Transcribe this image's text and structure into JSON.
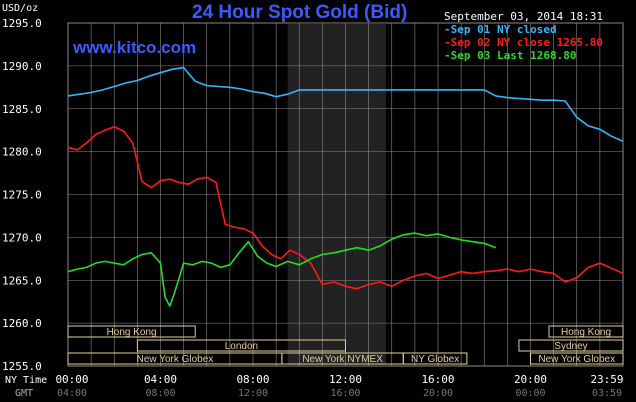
{
  "header": {
    "title": "24 Hour Spot Gold (Bid)",
    "website": "www.kitco.com",
    "unit_label": "USD/oz",
    "timestamp": "September 03, 2014 18:31"
  },
  "colors": {
    "background": "#000000",
    "grid": "#8a8a8a",
    "session_shade": "#222222",
    "sep01": "#33b5ff",
    "sep02": "#ff1a1a",
    "sep03": "#22dd22",
    "market_box": "#e3cf99",
    "market_text": "#000000"
  },
  "chart_data": {
    "type": "line",
    "title": "24 Hour Spot Gold (Bid)",
    "ylabel": "USD/oz",
    "ylim": [
      1255,
      1295
    ],
    "y_ticks": [
      "1255.0",
      "1260.0",
      "1265.0",
      "1270.0",
      "1275.0",
      "1280.0",
      "1285.0",
      "1290.0",
      "1295.0"
    ],
    "y_tick_values": [
      1255,
      1260,
      1265,
      1270,
      1275,
      1280,
      1285,
      1290,
      1295
    ],
    "xlim": [
      0,
      24
    ],
    "x_ticks_ny": [
      "00:00",
      "04:00",
      "08:00",
      "12:00",
      "16:00",
      "20:00",
      "23:59"
    ],
    "x_ticks_gmt": [
      "04:00",
      "08:00",
      "12:00",
      "16:00",
      "20:00",
      "00:00",
      "03:59"
    ],
    "x_tick_values": [
      0,
      4,
      8,
      12,
      16,
      20,
      24
    ],
    "x_row_labels": [
      "NY Time",
      "GMT"
    ],
    "shaded_session": [
      9.5,
      13.75
    ],
    "grid": true,
    "legend_position": "top-right",
    "series": [
      {
        "name": "Sep 01 NY closed",
        "legend": "Sep 01 NY closed",
        "color": "#33b5ff",
        "x": [
          0,
          0.5,
          1,
          1.5,
          2,
          2.5,
          3,
          3.5,
          4,
          4.5,
          5,
          5.5,
          6,
          6.5,
          7,
          7.5,
          8,
          8.5,
          9,
          9.5,
          10,
          11,
          12,
          13,
          14,
          15,
          16,
          17,
          18,
          18.5,
          19,
          19.5,
          20,
          20.5,
          21,
          21.5,
          22,
          22.5,
          23,
          23.5,
          24
        ],
        "y": [
          1286.5,
          1286.7,
          1286.9,
          1287.2,
          1287.6,
          1288.0,
          1288.3,
          1288.8,
          1289.2,
          1289.6,
          1289.8,
          1288.2,
          1287.7,
          1287.6,
          1287.5,
          1287.3,
          1287.0,
          1286.8,
          1286.4,
          1286.7,
          1287.2,
          1287.2,
          1287.2,
          1287.2,
          1287.2,
          1287.2,
          1287.2,
          1287.2,
          1287.2,
          1286.5,
          1286.3,
          1286.2,
          1286.1,
          1286.0,
          1286.0,
          1285.9,
          1284.0,
          1283.0,
          1282.6,
          1281.8,
          1281.2
        ]
      },
      {
        "name": "Sep 02 NY close 1265.80",
        "legend": "Sep 02 NY close 1265.80",
        "color": "#ff1a1a",
        "x": [
          0,
          0.4,
          0.8,
          1.2,
          1.6,
          2.0,
          2.4,
          2.8,
          3.2,
          3.6,
          4.0,
          4.4,
          4.8,
          5.2,
          5.6,
          6.0,
          6.4,
          6.8,
          7.2,
          7.6,
          8.0,
          8.4,
          8.8,
          9.2,
          9.6,
          10.0,
          10.5,
          11.0,
          11.5,
          12.0,
          12.5,
          13.0,
          13.5,
          14.0,
          14.5,
          15.0,
          15.5,
          16.0,
          16.5,
          17.0,
          17.5,
          18.0,
          18.5,
          19.0,
          19.5,
          20.0,
          20.5,
          21.0,
          21.5,
          22.0,
          22.5,
          23.0,
          23.5,
          24.0
        ],
        "y": [
          1280.5,
          1280.2,
          1281.0,
          1282.0,
          1282.5,
          1282.9,
          1282.4,
          1281.0,
          1276.5,
          1275.8,
          1276.6,
          1276.8,
          1276.4,
          1276.2,
          1276.8,
          1277.0,
          1276.4,
          1271.5,
          1271.2,
          1271.0,
          1270.5,
          1269.0,
          1268.0,
          1267.5,
          1268.5,
          1268.0,
          1267.0,
          1264.5,
          1264.8,
          1264.3,
          1264.0,
          1264.5,
          1264.8,
          1264.3,
          1265.0,
          1265.5,
          1265.8,
          1265.2,
          1265.6,
          1266.0,
          1265.8,
          1266.0,
          1266.1,
          1266.3,
          1266.0,
          1266.3,
          1266.0,
          1265.8,
          1264.8,
          1265.3,
          1266.5,
          1267.0,
          1266.4,
          1265.8
        ]
      },
      {
        "name": "Sep 03 Last 1268.80",
        "legend": "Sep 03 Last 1268.80",
        "color": "#22dd22",
        "x": [
          0,
          0.4,
          0.8,
          1.2,
          1.6,
          2.0,
          2.4,
          2.8,
          3.2,
          3.6,
          4.0,
          4.2,
          4.4,
          4.6,
          4.8,
          5.0,
          5.4,
          5.8,
          6.2,
          6.6,
          7.0,
          7.4,
          7.8,
          8.2,
          8.6,
          9.0,
          9.5,
          10.0,
          10.5,
          11.0,
          11.5,
          12.0,
          12.5,
          13.0,
          13.5,
          14.0,
          14.5,
          15.0,
          15.5,
          16.0,
          16.5,
          17.0,
          17.5,
          18.0,
          18.5
        ],
        "y": [
          1266.0,
          1266.3,
          1266.5,
          1267.0,
          1267.2,
          1267.0,
          1266.8,
          1267.5,
          1268.0,
          1268.2,
          1267.0,
          1263.0,
          1262.0,
          1263.5,
          1265.2,
          1267.0,
          1266.8,
          1267.2,
          1267.0,
          1266.5,
          1266.8,
          1268.2,
          1269.5,
          1267.8,
          1267.0,
          1266.6,
          1267.2,
          1266.8,
          1267.5,
          1268.0,
          1268.2,
          1268.5,
          1268.8,
          1268.5,
          1269.0,
          1269.8,
          1270.3,
          1270.5,
          1270.2,
          1270.4,
          1270.0,
          1269.7,
          1269.5,
          1269.3,
          1268.8
        ]
      }
    ],
    "markets": [
      {
        "label": "Hong Kong",
        "start": 0,
        "end": 5.5,
        "row": 0
      },
      {
        "label": "Hong Kong",
        "start": 20.8,
        "end": 24,
        "row": 0
      },
      {
        "label": "London",
        "start": 3,
        "end": 12,
        "row": 1
      },
      {
        "label": "Sydney",
        "start": 19.5,
        "end": 24,
        "row": 1
      },
      {
        "label": "New York Globex",
        "start": 0,
        "end": 9.25,
        "row": 2
      },
      {
        "label": "New York NYMEX",
        "start": 9.25,
        "end": 14.5,
        "row": 2
      },
      {
        "label": "NY Globex",
        "start": 14.5,
        "end": 17.25,
        "row": 2
      },
      {
        "label": "New York Globex",
        "start": 20,
        "end": 24,
        "row": 2
      }
    ]
  }
}
